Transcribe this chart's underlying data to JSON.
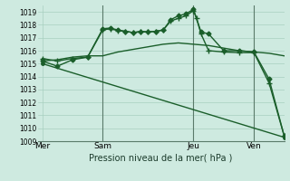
{
  "background_color": "#ceeae0",
  "grid_color": "#a8cfc0",
  "line_color": "#1a5e2a",
  "title": "Pression niveau de la mer( hPa )",
  "ylim": [
    1009,
    1019.5
  ],
  "yticks": [
    1009,
    1010,
    1011,
    1012,
    1013,
    1014,
    1015,
    1016,
    1017,
    1018,
    1019
  ],
  "xtick_labels": [
    "Mer",
    "Sam",
    "Jeu",
    "Ven"
  ],
  "xtick_positions": [
    0,
    4,
    10,
    14
  ],
  "xlim": [
    -0.3,
    16.0
  ],
  "vlines": [
    4,
    10,
    14
  ],
  "series": [
    {
      "x": [
        0,
        1,
        2,
        3,
        4,
        5,
        6,
        7,
        8,
        9,
        10,
        11,
        12,
        13,
        14,
        15,
        16
      ],
      "y": [
        1015.2,
        1015.3,
        1015.5,
        1015.6,
        1015.6,
        1015.9,
        1016.1,
        1016.3,
        1016.5,
        1016.6,
        1016.5,
        1016.4,
        1016.2,
        1016.0,
        1015.9,
        1015.8,
        1015.6
      ],
      "marker": null,
      "linewidth": 1.0,
      "markersize": 0
    },
    {
      "x": [
        0,
        16
      ],
      "y": [
        1015.0,
        1009.3
      ],
      "marker": "o",
      "linewidth": 1.0,
      "markersize": 2.5
    },
    {
      "x": [
        0,
        1,
        2,
        3,
        4,
        4.5,
        5,
        5.5,
        6,
        6.5,
        7,
        7.5,
        8,
        8.5,
        9,
        9.5,
        10,
        10.2,
        10.5,
        11,
        12,
        13,
        14,
        15,
        16
      ],
      "y": [
        1015.4,
        1015.2,
        1015.4,
        1015.5,
        1017.6,
        1017.7,
        1017.55,
        1017.5,
        1017.4,
        1017.5,
        1017.45,
        1017.5,
        1017.6,
        1018.3,
        1018.5,
        1018.7,
        1019.1,
        1018.5,
        1017.3,
        1016.0,
        1015.9,
        1015.85,
        1015.85,
        1013.5,
        1009.4
      ],
      "marker": "+",
      "linewidth": 1.0,
      "markersize": 4
    },
    {
      "x": [
        0,
        1,
        2,
        3,
        4,
        4.5,
        5,
        5.5,
        6,
        6.5,
        7,
        7.5,
        8,
        8.5,
        9,
        9.5,
        10,
        10.5,
        11,
        12,
        13,
        14,
        15,
        16
      ],
      "y": [
        1015.2,
        1014.8,
        1015.3,
        1015.5,
        1017.7,
        1017.75,
        1017.6,
        1017.5,
        1017.4,
        1017.45,
        1017.45,
        1017.5,
        1017.6,
        1018.4,
        1018.7,
        1018.85,
        1019.2,
        1017.45,
        1017.3,
        1016.0,
        1016.0,
        1015.9,
        1013.8,
        1009.4
      ],
      "marker": "D",
      "linewidth": 1.0,
      "markersize": 2.5
    }
  ]
}
